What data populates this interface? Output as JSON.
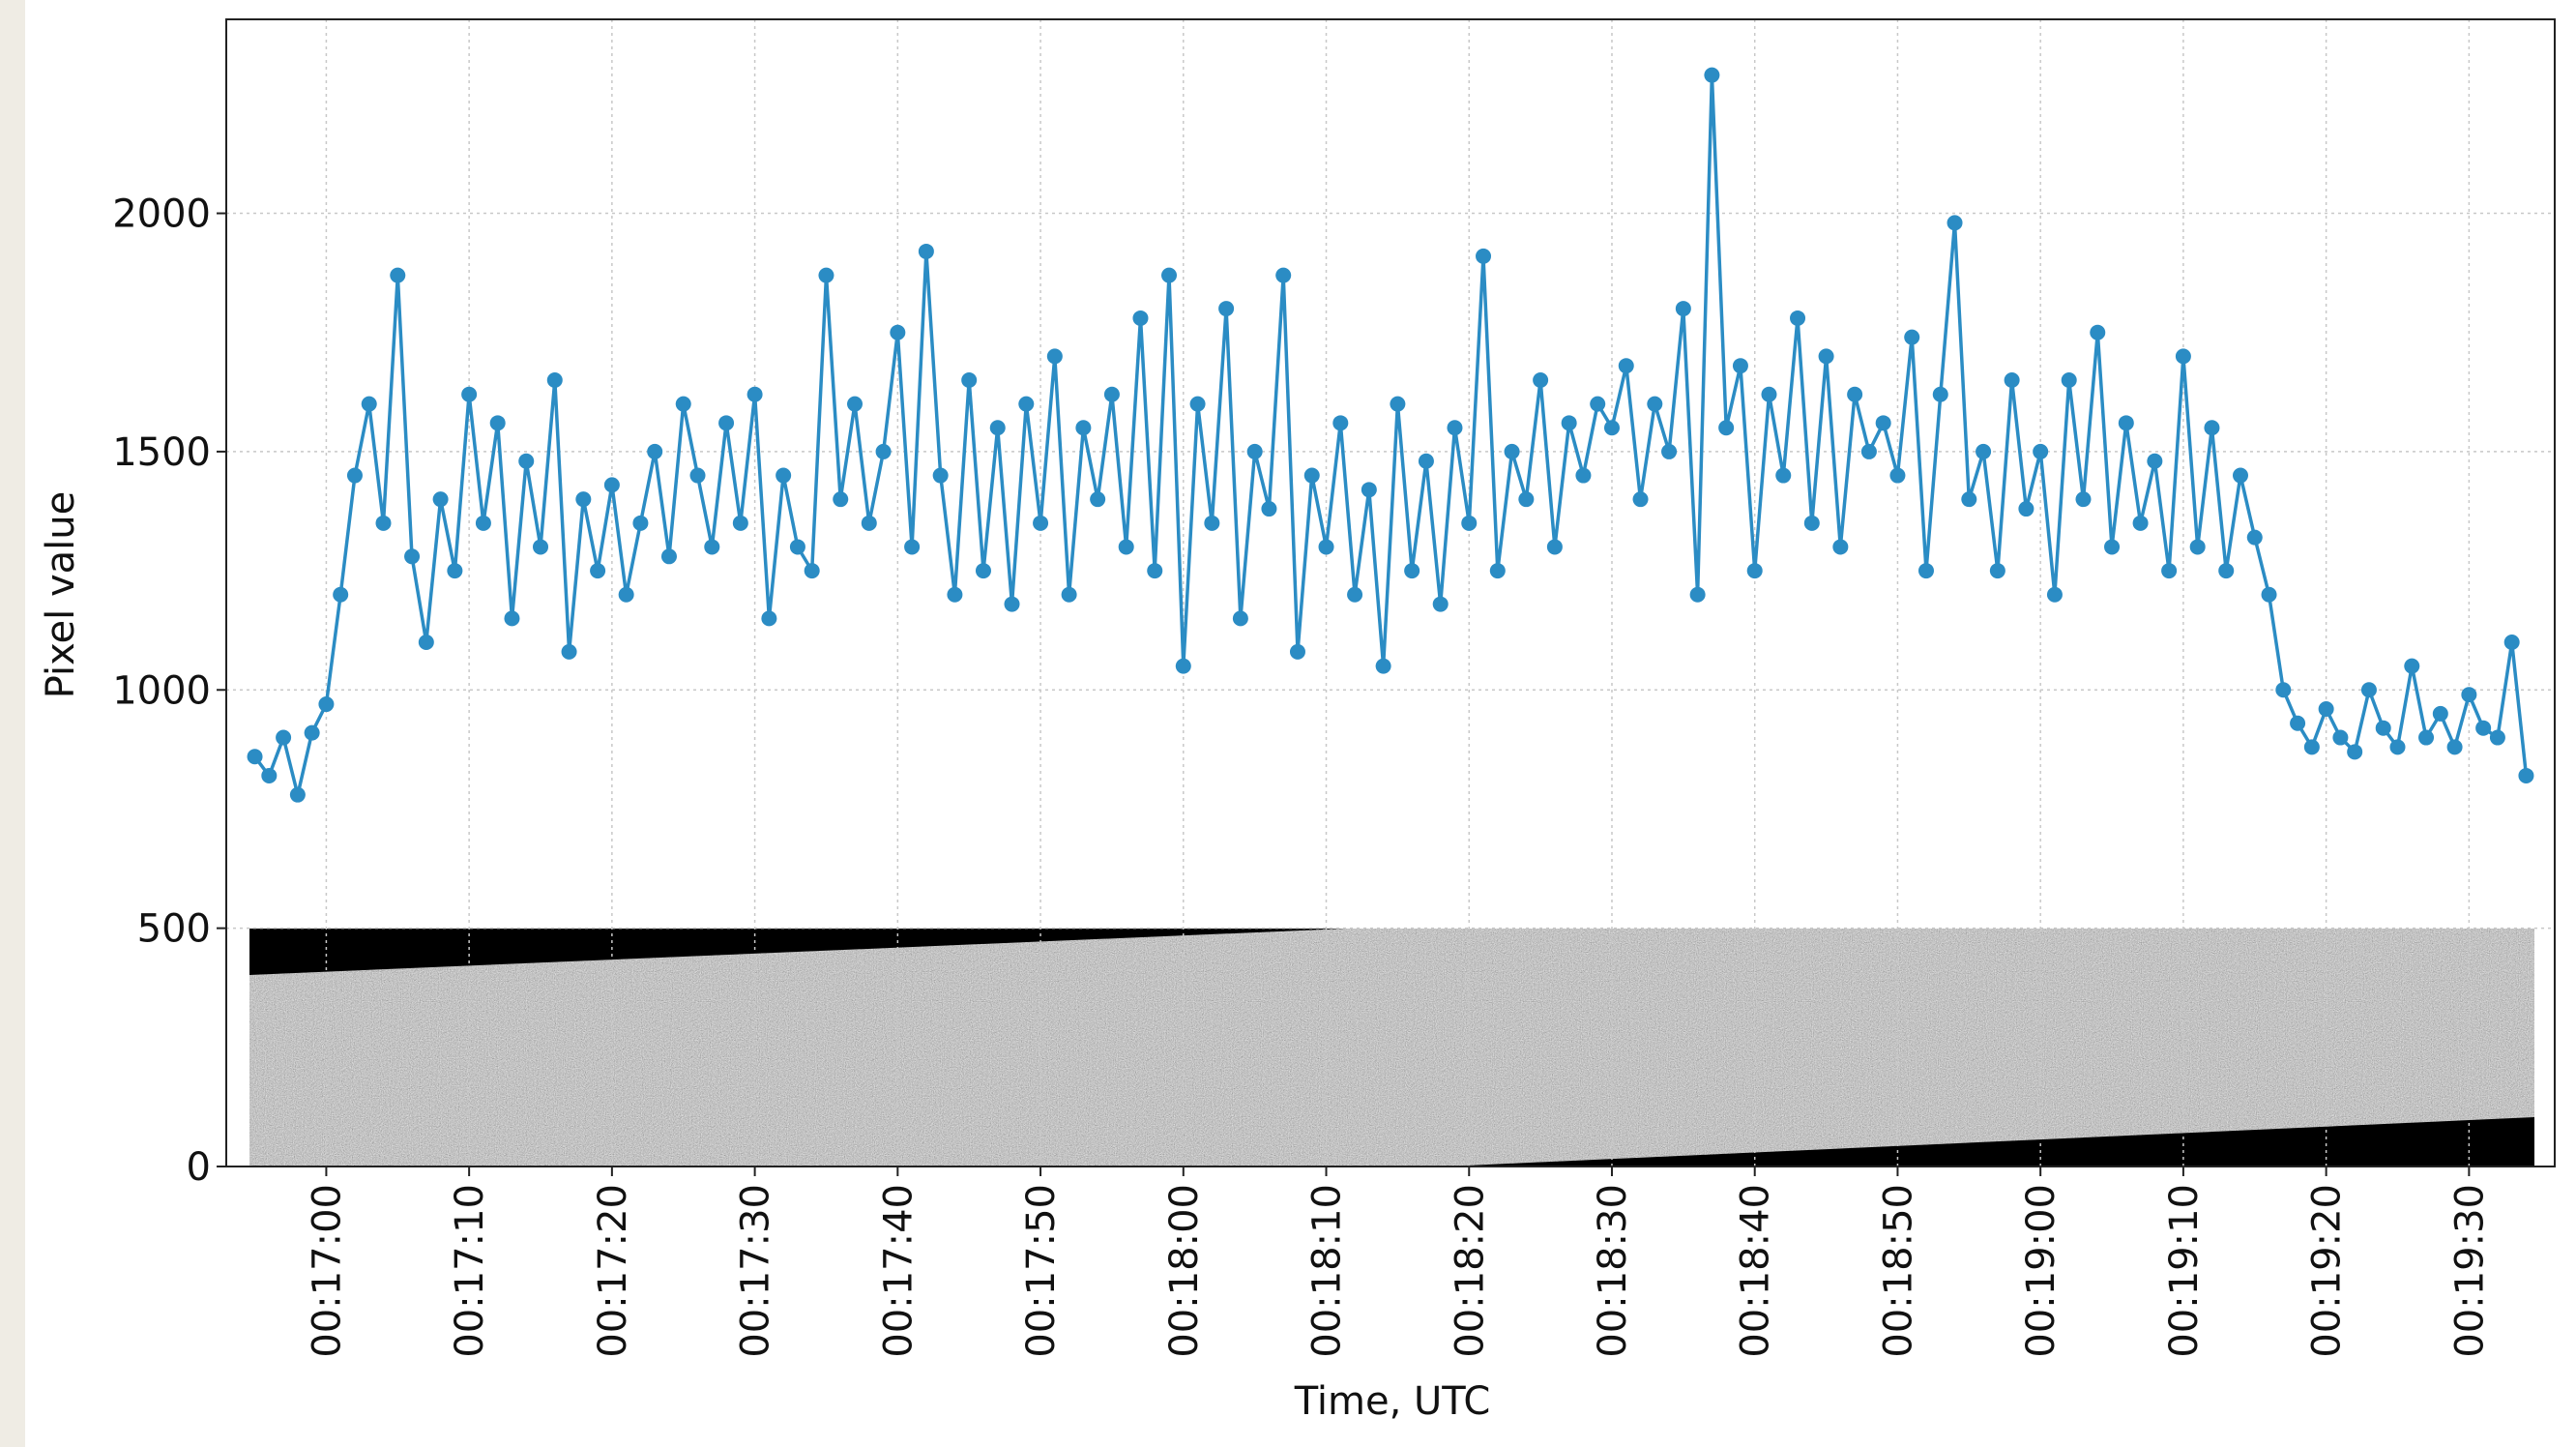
{
  "chart_data": {
    "type": "line",
    "ylabel": "Pixel value",
    "xlabel": "Time, UTC",
    "color": "#2b8cc4",
    "grid": true,
    "ylim": [
      0,
      2407
    ],
    "yticks": [
      0,
      500,
      1000,
      1500,
      2000
    ],
    "xlim": [
      "00:16:53",
      "00:19:36"
    ],
    "xticks": [
      "00:17:00",
      "00:17:10",
      "00:17:20",
      "00:17:30",
      "00:17:40",
      "00:17:50",
      "00:18:00",
      "00:18:10",
      "00:18:20",
      "00:18:30",
      "00:18:40",
      "00:18:50",
      "00:19:00",
      "00:19:10",
      "00:19:20",
      "00:19:30"
    ],
    "x": [
      "00:16:55",
      "00:16:56",
      "00:16:57",
      "00:16:58",
      "00:16:59",
      "00:17:00",
      "00:17:01",
      "00:17:02",
      "00:17:03",
      "00:17:04",
      "00:17:05",
      "00:17:06",
      "00:17:07",
      "00:17:08",
      "00:17:09",
      "00:17:10",
      "00:17:11",
      "00:17:12",
      "00:17:13",
      "00:17:14",
      "00:17:15",
      "00:17:16",
      "00:17:17",
      "00:17:18",
      "00:17:19",
      "00:17:20",
      "00:17:21",
      "00:17:22",
      "00:17:23",
      "00:17:24",
      "00:17:25",
      "00:17:26",
      "00:17:27",
      "00:17:28",
      "00:17:29",
      "00:17:30",
      "00:17:31",
      "00:17:32",
      "00:17:33",
      "00:17:34",
      "00:17:35",
      "00:17:36",
      "00:17:37",
      "00:17:38",
      "00:17:39",
      "00:17:40",
      "00:17:41",
      "00:17:42",
      "00:17:43",
      "00:17:44",
      "00:17:45",
      "00:17:46",
      "00:17:47",
      "00:17:48",
      "00:17:49",
      "00:17:50",
      "00:17:51",
      "00:17:52",
      "00:17:53",
      "00:17:54",
      "00:17:55",
      "00:17:56",
      "00:17:57",
      "00:17:58",
      "00:17:59",
      "00:18:00",
      "00:18:01",
      "00:18:02",
      "00:18:03",
      "00:18:04",
      "00:18:05",
      "00:18:06",
      "00:18:07",
      "00:18:08",
      "00:18:09",
      "00:18:10",
      "00:18:11",
      "00:18:12",
      "00:18:13",
      "00:18:14",
      "00:18:15",
      "00:18:16",
      "00:18:17",
      "00:18:18",
      "00:18:19",
      "00:18:20",
      "00:18:21",
      "00:18:22",
      "00:18:23",
      "00:18:24",
      "00:18:25",
      "00:18:26",
      "00:18:27",
      "00:18:28",
      "00:18:29",
      "00:18:30",
      "00:18:31",
      "00:18:32",
      "00:18:33",
      "00:18:34",
      "00:18:35",
      "00:18:36",
      "00:18:37",
      "00:18:38",
      "00:18:39",
      "00:18:40",
      "00:18:41",
      "00:18:42",
      "00:18:43",
      "00:18:44",
      "00:18:45",
      "00:18:46",
      "00:18:47",
      "00:18:48",
      "00:18:49",
      "00:18:50",
      "00:18:51",
      "00:18:52",
      "00:18:53",
      "00:18:54",
      "00:18:55",
      "00:18:56",
      "00:18:57",
      "00:18:58",
      "00:18:59",
      "00:19:00",
      "00:19:01",
      "00:19:02",
      "00:19:03",
      "00:19:04",
      "00:19:05",
      "00:19:06",
      "00:19:07",
      "00:19:08",
      "00:19:09",
      "00:19:10",
      "00:19:11",
      "00:19:12",
      "00:19:13",
      "00:19:14",
      "00:19:15",
      "00:19:16",
      "00:19:17",
      "00:19:18",
      "00:19:19",
      "00:19:20",
      "00:19:21",
      "00:19:22",
      "00:19:23",
      "00:19:24",
      "00:19:25",
      "00:19:26",
      "00:19:27",
      "00:19:28",
      "00:19:29",
      "00:19:30",
      "00:19:31",
      "00:19:32",
      "00:19:33",
      "00:19:34"
    ],
    "values": [
      860,
      820,
      900,
      780,
      910,
      970,
      1200,
      1450,
      1600,
      1350,
      1870,
      1280,
      1100,
      1400,
      1250,
      1620,
      1350,
      1560,
      1150,
      1480,
      1300,
      1650,
      1080,
      1400,
      1250,
      1430,
      1200,
      1350,
      1500,
      1280,
      1600,
      1450,
      1300,
      1560,
      1350,
      1620,
      1150,
      1450,
      1300,
      1250,
      1870,
      1400,
      1600,
      1350,
      1500,
      1750,
      1300,
      1920,
      1450,
      1200,
      1650,
      1250,
      1550,
      1180,
      1600,
      1350,
      1700,
      1200,
      1550,
      1400,
      1620,
      1300,
      1780,
      1250,
      1870,
      1050,
      1600,
      1350,
      1800,
      1150,
      1500,
      1380,
      1870,
      1080,
      1450,
      1300,
      1560,
      1200,
      1420,
      1050,
      1600,
      1250,
      1480,
      1180,
      1550,
      1350,
      1910,
      1250,
      1500,
      1400,
      1650,
      1300,
      1560,
      1450,
      1600,
      1550,
      1680,
      1400,
      1600,
      1500,
      1800,
      1200,
      2290,
      1550,
      1680,
      1250,
      1620,
      1450,
      1780,
      1350,
      1700,
      1300,
      1620,
      1500,
      1560,
      1450,
      1740,
      1250,
      1620,
      1980,
      1400,
      1500,
      1250,
      1650,
      1380,
      1500,
      1200,
      1650,
      1400,
      1750,
      1300,
      1560,
      1350,
      1480,
      1250,
      1700,
      1300,
      1550,
      1250,
      1450,
      1320,
      1200,
      1000,
      930,
      880,
      960,
      900,
      870,
      1000,
      920,
      880,
      1050,
      900,
      950,
      880,
      990,
      920,
      900,
      1100,
      820
    ]
  }
}
